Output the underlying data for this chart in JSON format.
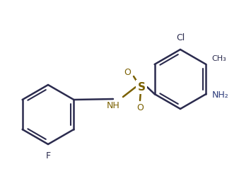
{
  "background_color": "#ffffff",
  "bond_color": "#2b2b4e",
  "so2_color": "#7a6000",
  "nh_color": "#7a6000",
  "nh2_color": "#2b3a7a",
  "atom_colors": {
    "Cl": "#2b2b4e",
    "F": "#2b2b4e",
    "CH3": "#2b2b4e",
    "S": "#7a6000",
    "O": "#7a6000",
    "NH": "#7a6000",
    "NH2": "#2b3a7a"
  },
  "figsize": [
    3.38,
    2.56
  ],
  "dpi": 100
}
